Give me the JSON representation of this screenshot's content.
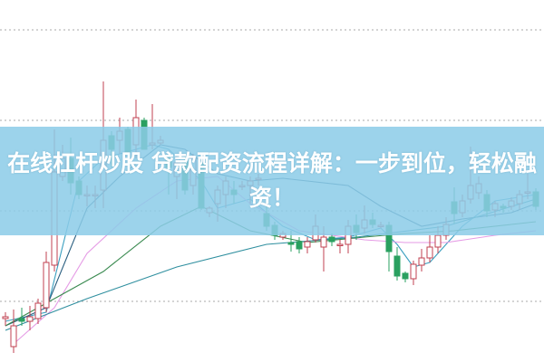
{
  "banner": {
    "title": "在线杠杆炒股 贷款配资流程详解：一步到位，轻松融资！"
  },
  "chart_data": {
    "type": "candlestick",
    "grid": true,
    "ylim": [
      0,
      400
    ],
    "colors": {
      "up": "#e0323c",
      "down": "#2aa060",
      "banner": "#8cccea"
    },
    "candles": [
      [
        48,
        55,
        40,
        50
      ],
      [
        17,
        58,
        10,
        40
      ],
      [
        48,
        60,
        40,
        45
      ],
      [
        45,
        62,
        35,
        50
      ],
      [
        48,
        70,
        42,
        65
      ],
      [
        60,
        122,
        55,
        110
      ],
      [
        107,
        257,
        100,
        210
      ],
      [
        205,
        240,
        200,
        225
      ],
      [
        225,
        248,
        185,
        198
      ],
      [
        200,
        205,
        180,
        185
      ],
      [
        185,
        195,
        172,
        185
      ],
      [
        185,
        195,
        170,
        185
      ],
      [
        190,
        310,
        170,
        245
      ],
      [
        250,
        255,
        215,
        235
      ],
      [
        245,
        270,
        230,
        255
      ],
      [
        257,
        260,
        230,
        232
      ],
      [
        240,
        290,
        225,
        270
      ],
      [
        267,
        270,
        235,
        235
      ],
      [
        240,
        285,
        235,
        242
      ],
      [
        242,
        250,
        240,
        245
      ],
      [
        225,
        232,
        185,
        215
      ],
      [
        205,
        230,
        180,
        220
      ],
      [
        222,
        228,
        185,
        190
      ],
      [
        195,
        230,
        185,
        225
      ],
      [
        220,
        228,
        168,
        170
      ],
      [
        165,
        172,
        160,
        170
      ],
      [
        175,
        195,
        155,
        190
      ],
      [
        185,
        205,
        170,
        200
      ],
      [
        190,
        200,
        175,
        185
      ],
      [
        195,
        200,
        190,
        195
      ],
      [
        195,
        205,
        175,
        200
      ],
      [
        203,
        208,
        195,
        203
      ],
      [
        164,
        175,
        145,
        150
      ],
      [
        151,
        155,
        135,
        140
      ],
      [
        138,
        145,
        135,
        142
      ],
      [
        132,
        145,
        122,
        130
      ],
      [
        133,
        138,
        120,
        125
      ],
      [
        127,
        138,
        120,
        133
      ],
      [
        135,
        163,
        132,
        150
      ],
      [
        127,
        150,
        100,
        138
      ],
      [
        138,
        142,
        128,
        133
      ],
      [
        130,
        135,
        120,
        130
      ],
      [
        130,
        157,
        120,
        150
      ],
      [
        151,
        163,
        135,
        143
      ],
      [
        148,
        173,
        142,
        157
      ],
      [
        157,
        165,
        148,
        152
      ],
      [
        151,
        155,
        148,
        151
      ],
      [
        151,
        155,
        100,
        122
      ],
      [
        117,
        127,
        90,
        95
      ],
      [
        98,
        100,
        88,
        92
      ],
      [
        92,
        112,
        85,
        108
      ],
      [
        107,
        125,
        100,
        115
      ],
      [
        115,
        140,
        110,
        127
      ],
      [
        127,
        150,
        120,
        140
      ],
      [
        140,
        160,
        135,
        152
      ],
      [
        177,
        193,
        153,
        164
      ],
      [
        165,
        185,
        160,
        178
      ],
      [
        180,
        238,
        175,
        195
      ],
      [
        187,
        205,
        180,
        197
      ],
      [
        185,
        190,
        160,
        167
      ],
      [
        168,
        178,
        160,
        175
      ],
      [
        172,
        175,
        165,
        170
      ],
      [
        172,
        182,
        168,
        178
      ],
      [
        175,
        190,
        168,
        185
      ],
      [
        188,
        208,
        180,
        188
      ],
      [
        188,
        192,
        168,
        172
      ]
    ],
    "moving_averages": [
      {
        "color": "#3a9fbf",
        "points": [
          [
            0,
            45
          ],
          [
            5,
            55
          ],
          [
            9,
            200
          ],
          [
            12,
            225
          ],
          [
            18,
            240
          ],
          [
            20,
            235
          ],
          [
            24,
            200
          ],
          [
            26,
            170
          ],
          [
            30,
            180
          ],
          [
            34,
            150
          ],
          [
            38,
            135
          ],
          [
            42,
            138
          ],
          [
            46,
            148
          ],
          [
            48,
            130
          ],
          [
            50,
            105
          ],
          [
            52,
            110
          ],
          [
            56,
            150
          ],
          [
            60,
            178
          ],
          [
            65,
            185
          ]
        ]
      },
      {
        "color": "#2a5f80",
        "points": [
          [
            0,
            40
          ],
          [
            5,
            60
          ],
          [
            10,
            170
          ],
          [
            14,
            205
          ],
          [
            19,
            240
          ],
          [
            22,
            235
          ],
          [
            26,
            208
          ],
          [
            30,
            200
          ],
          [
            34,
            203
          ],
          [
            42,
            195
          ],
          [
            46,
            172
          ],
          [
            51,
            150
          ],
          [
            56,
            158
          ],
          [
            62,
            165
          ],
          [
            65,
            175
          ]
        ]
      },
      {
        "color": "#e59be5",
        "points": [
          [
            1,
            20
          ],
          [
            6,
            60
          ],
          [
            10,
            120
          ],
          [
            16,
            170
          ],
          [
            21,
            200
          ],
          [
            26,
            205
          ],
          [
            30,
            175
          ],
          [
            36,
            145
          ],
          [
            44,
            135
          ],
          [
            49,
            132
          ],
          [
            54,
            132
          ],
          [
            60,
            140
          ],
          [
            65,
            145
          ]
        ]
      },
      {
        "color": "#3a8a50",
        "points": [
          [
            0,
            40
          ],
          [
            6,
            70
          ],
          [
            12,
            100
          ],
          [
            19,
            150
          ],
          [
            24,
            172
          ],
          [
            30,
            145
          ],
          [
            37,
            132
          ],
          [
            44,
            138
          ],
          [
            49,
            142
          ],
          [
            55,
            145
          ],
          [
            65,
            155
          ]
        ]
      },
      {
        "color": "#2f8f9f",
        "points": [
          [
            0,
            35
          ],
          [
            10,
            70
          ],
          [
            21,
            105
          ],
          [
            32,
            130
          ],
          [
            43,
            138
          ],
          [
            54,
            150
          ],
          [
            65,
            180
          ]
        ]
      }
    ],
    "gridlines": [
      67,
      167,
      267,
      367
    ]
  }
}
